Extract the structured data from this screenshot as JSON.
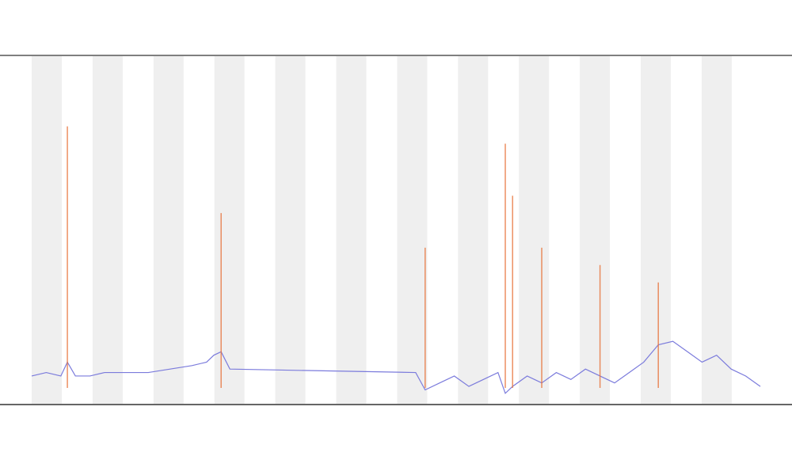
{
  "chart_data": {
    "type": "line",
    "x": [
      0,
      2,
      4,
      4.9,
      6,
      8,
      10,
      13,
      16,
      19,
      22,
      24,
      25,
      26,
      27.2,
      52.7,
      54,
      56,
      58,
      60,
      62,
      64,
      65,
      66,
      68,
      70,
      72,
      74,
      76,
      78,
      80,
      82,
      84,
      86,
      88,
      90,
      92,
      94,
      96,
      98,
      100
    ],
    "series": [
      {
        "color": "#7b7bdc",
        "style": "line",
        "values": [
          8,
          9,
          8,
          12,
          8,
          8,
          9,
          9,
          9,
          10,
          11,
          12,
          14,
          15,
          10,
          9,
          4,
          6,
          8,
          5,
          7,
          9,
          3,
          5,
          8,
          6,
          9,
          7,
          10,
          8,
          6,
          9,
          12,
          17,
          18,
          15,
          12,
          14,
          10,
          8,
          5
        ]
      },
      {
        "color": "#e8743b",
        "style": "stem",
        "values": [
          null,
          null,
          null,
          80,
          null,
          null,
          null,
          null,
          null,
          null,
          null,
          null,
          null,
          55,
          null,
          null,
          45,
          null,
          null,
          null,
          null,
          null,
          75,
          60,
          null,
          45,
          null,
          null,
          null,
          40,
          null,
          null,
          null,
          35,
          null,
          null,
          null,
          null,
          null,
          null,
          null
        ]
      }
    ],
    "xlim": [
      0,
      100
    ],
    "ylim": [
      0,
      100
    ]
  }
}
